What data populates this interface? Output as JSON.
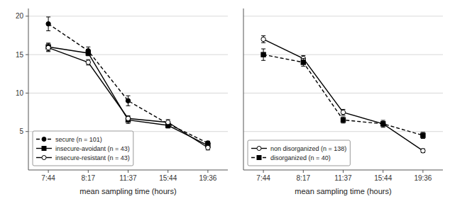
{
  "chart_data": [
    {
      "type": "line",
      "categories": [
        "7:44",
        "8:17",
        "11:37",
        "15:44",
        "19:36"
      ],
      "xlabel": "mean sampling time (hours)",
      "ylim": [
        0,
        21
      ],
      "yticks": [
        5,
        10,
        15,
        20
      ],
      "grid": true,
      "legend": "lower left",
      "series": [
        {
          "name": "secure (n = 101)",
          "values": [
            19.0,
            15.5,
            9.0,
            6.0,
            3.5
          ],
          "errors": [
            0.9,
            0.5,
            0.65,
            0.3,
            0.25
          ],
          "marker": "circle",
          "line_style": "dashed",
          "color": "black"
        },
        {
          "name": "insecure-avoidant (n = 43)",
          "values": [
            16.0,
            15.2,
            6.5,
            5.8,
            3.2
          ],
          "errors": [
            0.5,
            0.35,
            0.45,
            0.35,
            0.3
          ],
          "marker": "square",
          "line_style": "solid",
          "color": "black"
        },
        {
          "name": "insecure-resistant (n = 43)",
          "values": [
            15.9,
            14.0,
            6.7,
            6.2,
            2.9
          ],
          "errors": [
            0.5,
            0.35,
            0.35,
            0.35,
            0.3
          ],
          "marker": "open-circle",
          "line_style": "solid",
          "color": "black"
        }
      ]
    },
    {
      "type": "line",
      "categories": [
        "7:44",
        "8:17",
        "11:37",
        "15:44",
        "19:36"
      ],
      "xlabel": "mean sampling time (hours)",
      "ylim": [
        0,
        21
      ],
      "yticks": [
        5,
        10,
        15,
        20
      ],
      "grid": true,
      "legend": "lower left",
      "tick_labels": "x",
      "series": [
        {
          "name": "non disorganized (n = 138)",
          "values": [
            17.0,
            14.5,
            7.5,
            6.0,
            2.5
          ],
          "errors": [
            0.45,
            0.38,
            0.38,
            0.28,
            0.25
          ],
          "marker": "open-circle",
          "line_style": "solid",
          "color": "black"
        },
        {
          "name": "disorganized (n = 40)",
          "values": [
            15.0,
            14.0,
            6.5,
            6.0,
            4.5
          ],
          "errors": [
            0.75,
            0.5,
            0.4,
            0.45,
            0.4
          ],
          "marker": "square",
          "line_style": "dashed",
          "color": "black"
        }
      ]
    }
  ]
}
